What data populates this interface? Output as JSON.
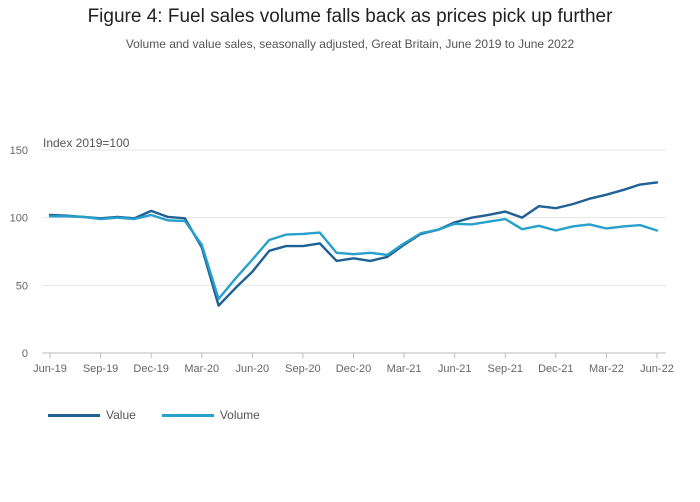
{
  "chart_data": {
    "type": "line",
    "title": "Figure 4: Fuel sales volume falls back as prices pick up further",
    "subtitle": "Volume and value sales, seasonally adjusted, Great Britain, June 2019 to June 2022",
    "ylabel": "Index 2019=100",
    "xlabel": "",
    "ylim": [
      0,
      150
    ],
    "yticks": [
      0,
      50,
      100,
      150
    ],
    "grid": true,
    "legend_position": "bottom-left",
    "x": [
      "Jun-19",
      "Jul-19",
      "Aug-19",
      "Sep-19",
      "Oct-19",
      "Nov-19",
      "Dec-19",
      "Jan-20",
      "Feb-20",
      "Mar-20",
      "Apr-20",
      "May-20",
      "Jun-20",
      "Jul-20",
      "Aug-20",
      "Sep-20",
      "Oct-20",
      "Nov-20",
      "Dec-20",
      "Jan-21",
      "Feb-21",
      "Mar-21",
      "Apr-21",
      "May-21",
      "Jun-21",
      "Jul-21",
      "Aug-21",
      "Sep-21",
      "Oct-21",
      "Nov-21",
      "Dec-21",
      "Jan-22",
      "Feb-22",
      "Mar-22",
      "Apr-22",
      "May-22",
      "Jun-22"
    ],
    "tick_labels": [
      "Jun-19",
      "Sep-19",
      "Dec-19",
      "Mar-20",
      "Jun-20",
      "Sep-20",
      "Dec-20",
      "Mar-21",
      "Jun-21",
      "Sep-21",
      "Dec-21",
      "Mar-22",
      "Jun-22"
    ],
    "series": [
      {
        "name": "Value",
        "color": "#206095",
        "values": [
          102,
          101.5,
          100.5,
          99.5,
          100.5,
          99.5,
          105,
          100.5,
          99.5,
          78,
          35,
          48,
          60,
          75.5,
          79,
          79,
          81,
          68,
          70,
          68,
          71,
          80,
          88,
          91,
          96.5,
          100,
          102,
          104.5,
          100,
          108.5,
          107,
          110,
          114,
          117,
          120.5,
          124.5,
          126
        ]
      },
      {
        "name": "Volume",
        "color": "#27a0cc",
        "values": [
          101,
          101,
          100.5,
          99,
          100,
          99,
          102,
          98,
          97.5,
          80,
          40,
          55,
          69,
          83.5,
          87.5,
          88,
          89,
          74,
          73,
          74,
          72.5,
          81,
          88.5,
          91,
          95.5,
          95,
          97,
          99,
          91.5,
          94,
          90.5,
          93.5,
          95,
          92,
          93.5,
          94.5,
          90.5
        ]
      }
    ]
  }
}
